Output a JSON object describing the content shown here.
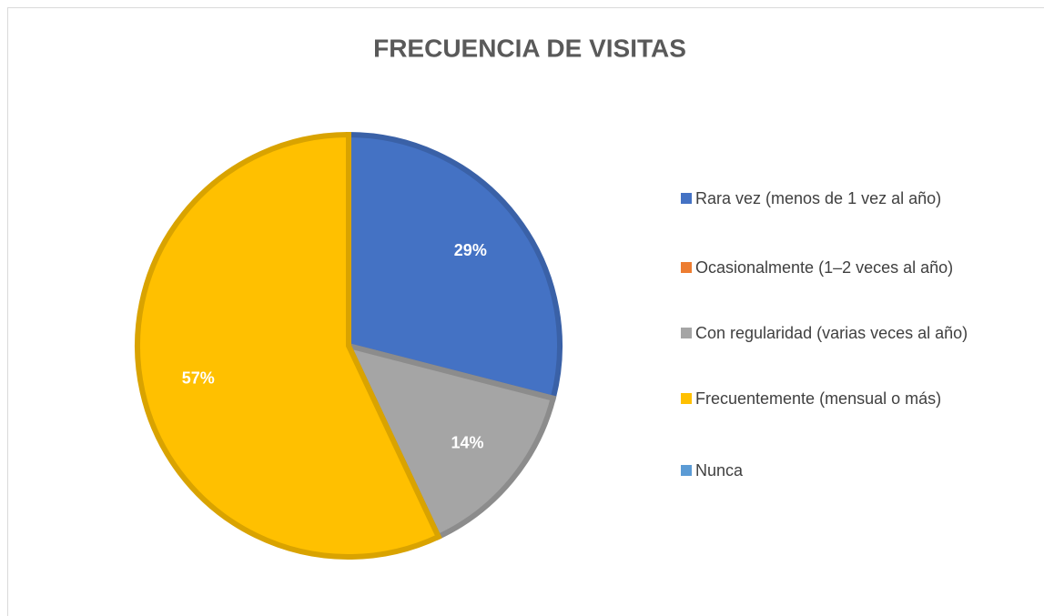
{
  "chart_data": {
    "type": "pie",
    "title": "FRECUENCIA DE VISITAS",
    "categories": [
      "Rara vez (menos de 1 vez al año)",
      "Ocasionalmente (1–2 veces al año)",
      "Con regularidad (varias veces al año)",
      "Frecuentemente (mensual o más)",
      "Nunca"
    ],
    "values": [
      29,
      0,
      14,
      57,
      0
    ],
    "value_labels": [
      "29%",
      null,
      "14%",
      "57%",
      null
    ],
    "colors": [
      "#4472c4",
      "#ed7d31",
      "#a5a5a5",
      "#ffc000",
      "#5b9bd5"
    ],
    "legend": "right"
  }
}
